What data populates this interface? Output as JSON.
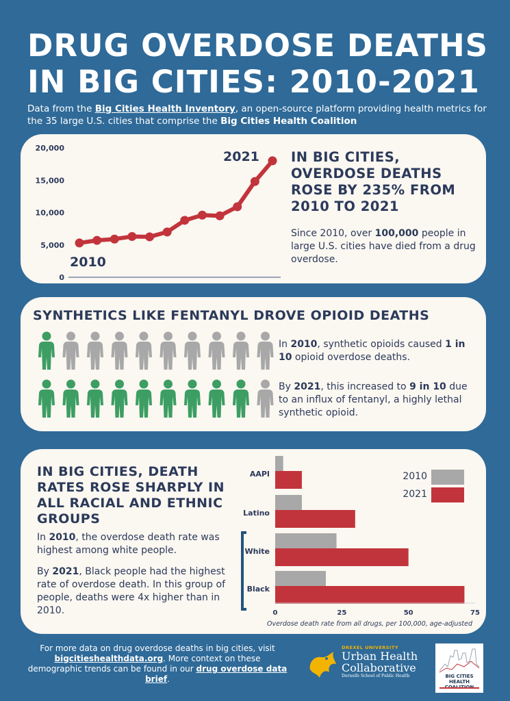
{
  "title_line1": "DRUG OVERDOSE DEATHS",
  "title_line2": "IN BIG CITIES: 2010-2021",
  "intro": {
    "p1": "Data from the ",
    "link": "Big Cities Health Inventory",
    "p2": ", an open-source platform providing health metrics for the 35 large U.S. cities that comprise the ",
    "bold": "Big Cities Health Coalition"
  },
  "card1": {
    "heading": "IN BIG CITIES, OVERDOSE DEATHS ROSE BY 235% FROM 2010 TO 2021",
    "text_a": "Since 2010, over ",
    "text_b": "100,000",
    "text_c": " people in large U.S. cities have died from a drug overdose."
  },
  "card2": {
    "heading": "SYNTHETICS LIKE FENTANYL DROVE OPIOID DEATHS",
    "t1a": "In ",
    "t1b": "2010",
    "t1c": ", synthetic opioids caused ",
    "t1d": "1 in 10",
    "t1e": " opioid overdose deaths.",
    "t2a": "By ",
    "t2b": "2021",
    "t2c": ", this increased to ",
    "t2d": "9 in 10",
    "t2e": " due to an influx of fentanyl, a highly lethal synthetic opioid.",
    "row_2010_green": 1,
    "row_2021_green": 9,
    "total_people": 10
  },
  "card3": {
    "heading": "IN BIG CITIES, DEATH RATES ROSE SHARPLY IN ALL RACIAL AND ETHNIC GROUPS",
    "t1a": "In ",
    "t1b": "2010",
    "t1c": ", the overdose death rate was highest among white people.",
    "t2a": "By ",
    "t2b": "2021",
    "t2c": ", Black people had the highest rate of overdose death. In this group of people, deaths were 4x higher than in 2010."
  },
  "footer": {
    "a": "For more data on drug overdose deaths in big cities, visit ",
    "link1": "bigcitieshealthdata.org",
    "b": ". More context on these demographic trends can be found in our ",
    "link2": "drug overdose data brief",
    "c": "."
  },
  "logos": {
    "drexel_small": "DREXEL UNIVERSITY",
    "uhc_line1": "Urban Health",
    "uhc_line2": "Collaborative",
    "uhc_sub": "Dornsife School of Public Health",
    "bchc_line1": "BIG CITIES",
    "bchc_line2": "HEALTH COALITION"
  },
  "colors": {
    "background": "#2f6a98",
    "card": "#fbf7f1",
    "navy": "#2b3a5a",
    "red": "#c2343b",
    "green": "#3d9e63",
    "gray": "#a8a8a8"
  },
  "chart_data": [
    {
      "type": "line",
      "x": [
        2010,
        2011,
        2012,
        2013,
        2014,
        2015,
        2016,
        2017,
        2018,
        2019,
        2020,
        2021
      ],
      "values": [
        5300,
        5700,
        5900,
        6300,
        6250,
        7000,
        8800,
        9600,
        9500,
        10900,
        14800,
        18000
      ],
      "yticks": [
        "20,000",
        "15,000",
        "10,000",
        "5,000",
        "0"
      ],
      "ylim": [
        0,
        20000
      ],
      "start_label": "2010",
      "end_label": "2021"
    },
    {
      "type": "bar",
      "orientation": "horizontal",
      "categories": [
        "AAPI",
        "Latino",
        "White",
        "Black"
      ],
      "series": [
        {
          "name": "2010",
          "values": [
            3,
            10,
            23,
            19
          ]
        },
        {
          "name": "2021",
          "values": [
            10,
            30,
            50,
            71
          ]
        }
      ],
      "xticks": [
        "0",
        "25",
        "50",
        "75"
      ],
      "xlim": [
        0,
        75
      ],
      "xlabel": "Overdose death rate from all drugs, per 100,000, age-adjusted",
      "legend": "top-right"
    }
  ]
}
